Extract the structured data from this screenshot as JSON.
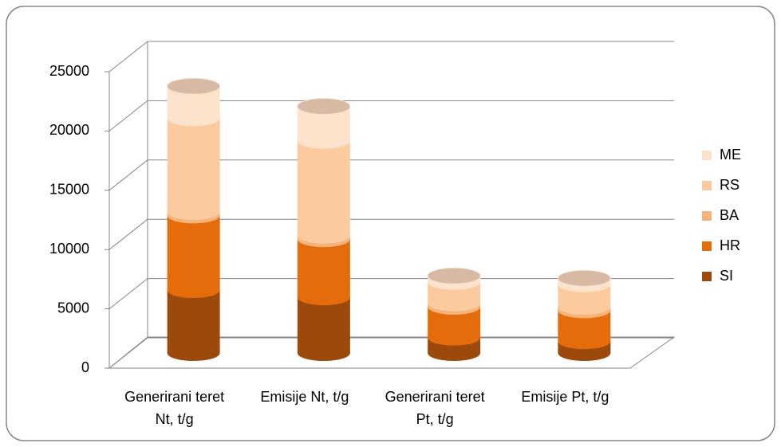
{
  "chart_data": {
    "type": "bar3d_stacked",
    "categories": [
      "Generirani teret Nt, t/g",
      "Emisije Nt, t/g",
      "Generirani teret Pt, t/g",
      "Emisije Pt, t/g"
    ],
    "series": [
      {
        "name": "SI",
        "color": "#9c4a0c",
        "values": [
          5300,
          4700,
          1300,
          1000
        ]
      },
      {
        "name": "HR",
        "color": "#e46c0a",
        "values": [
          6300,
          4900,
          2600,
          2600
        ]
      },
      {
        "name": "BA",
        "color": "#f6b47c",
        "values": [
          300,
          300,
          300,
          300
        ]
      },
      {
        "name": "RS",
        "color": "#fbcb9f",
        "values": [
          7900,
          8000,
          1800,
          1900
        ]
      },
      {
        "name": "ME",
        "color": "#fde3cc",
        "values": [
          2700,
          2900,
          500,
          500
        ]
      }
    ],
    "ylim": [
      0,
      25000
    ],
    "yticks": [
      0,
      5000,
      10000,
      15000,
      20000,
      25000
    ],
    "grid": true,
    "legend": "right"
  }
}
